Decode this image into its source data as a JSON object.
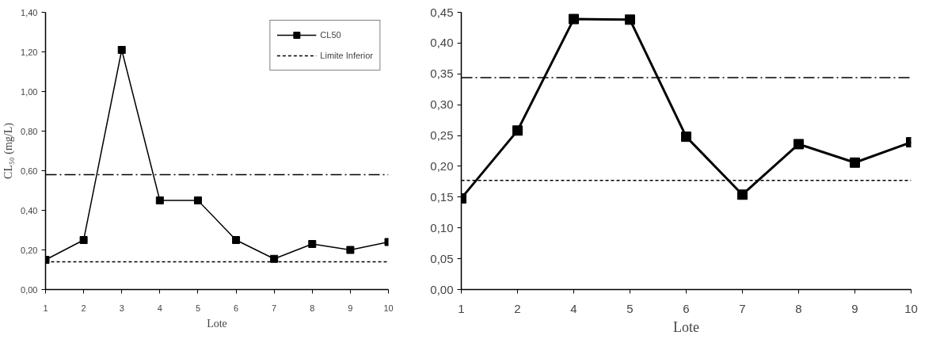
{
  "chart_data": [
    {
      "type": "line",
      "xlabel": "Lote",
      "ylabel": "CL₅₀ (mg/L)",
      "categories": [
        "1",
        "2",
        "3",
        "4",
        "5",
        "6",
        "7",
        "8",
        "9",
        "10"
      ],
      "series": [
        {
          "name": "CL50",
          "color": "#000000",
          "values": [
            0.15,
            0.25,
            1.21,
            0.45,
            0.45,
            0.25,
            0.155,
            0.23,
            0.2,
            0.24
          ]
        }
      ],
      "ylim": [
        0,
        1.4
      ],
      "yticks": [
        {
          "value": 0,
          "label": "0,00"
        },
        {
          "value": 0.2,
          "label": "0,20"
        },
        {
          "value": 0.4,
          "label": "0,40"
        },
        {
          "value": 0.6,
          "label": "0,60"
        },
        {
          "value": 0.8,
          "label": "0,80"
        },
        {
          "value": 1.0,
          "label": "1,00"
        },
        {
          "value": 1.2,
          "label": "1,20"
        },
        {
          "value": 1.4,
          "label": "1,40"
        }
      ],
      "ref_lines": [
        {
          "axis": "y",
          "value": 0.58,
          "line_style": "dashdot",
          "color": "#000000"
        },
        {
          "axis": "y",
          "value": 0.14,
          "label": "Limite Inferior",
          "line_style": "dashed",
          "color": "#000000"
        }
      ],
      "marker": "square",
      "line_style": "solid",
      "grid": false,
      "legend": "top right"
    },
    {
      "type": "line",
      "xlabel": "Lote",
      "categories": [
        "1",
        "2",
        "4",
        "5",
        "6",
        "7",
        "8",
        "9",
        "10"
      ],
      "series": [
        {
          "color": "#000000",
          "values": [
            0.148,
            0.258,
            0.439,
            0.438,
            0.248,
            0.154,
            0.236,
            0.206,
            0.239
          ]
        }
      ],
      "ylim": [
        0,
        0.45
      ],
      "yticks": [
        {
          "value": 0,
          "label": "0,00"
        },
        {
          "value": 0.05,
          "label": "0,05"
        },
        {
          "value": 0.1,
          "label": "0,10"
        },
        {
          "value": 0.15,
          "label": "0,15"
        },
        {
          "value": 0.2,
          "label": "0,20"
        },
        {
          "value": 0.25,
          "label": "0,25"
        },
        {
          "value": 0.3,
          "label": "0,30"
        },
        {
          "value": 0.35,
          "label": "0,35"
        },
        {
          "value": 0.4,
          "label": "0,40"
        },
        {
          "value": 0.45,
          "label": "0,45"
        }
      ],
      "ref_lines": [
        {
          "axis": "y",
          "value": 0.344,
          "line_style": "dashdot",
          "color": "#000000"
        },
        {
          "axis": "y",
          "value": 0.177,
          "line_style": "dashed",
          "color": "#000000"
        }
      ],
      "marker": "square",
      "line_style": "solid",
      "grid": false,
      "legend": false
    }
  ]
}
